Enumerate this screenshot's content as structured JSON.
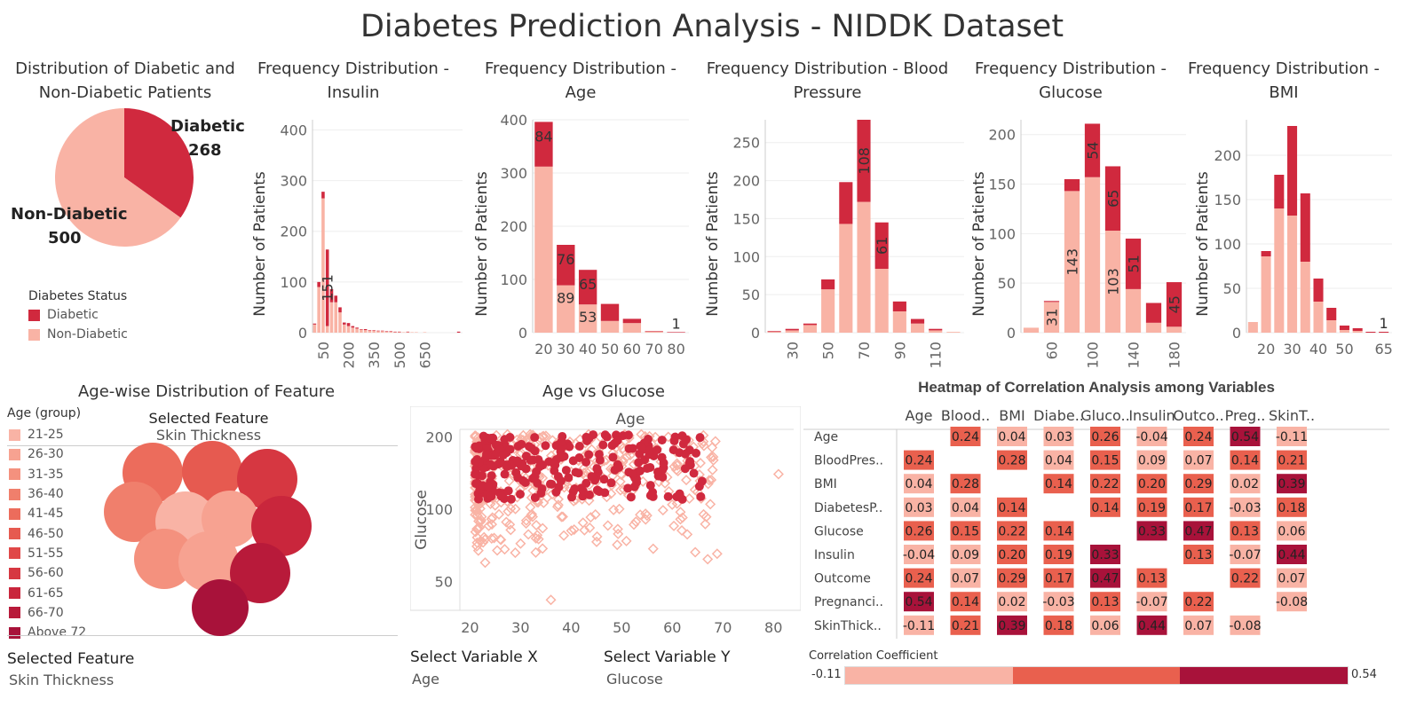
{
  "page_title": "Diabetes Prediction Analysis - NIDDK Dataset",
  "colors": {
    "diabetic": "#d0293e",
    "non_diabetic": "#f9b3a5",
    "dark": "#a8123a",
    "mid": "#e9604e"
  },
  "legend": {
    "title": "Diabetes Status",
    "items": [
      {
        "label": "Diabetic",
        "color": "#d0293e"
      },
      {
        "label": "Non-Diabetic",
        "color": "#f9b3a5"
      }
    ]
  },
  "pie": {
    "title": "Distribution of Diabetic and Non-Diabetic Patients",
    "slices": [
      {
        "label": "Diabetic",
        "value": 268,
        "color": "#d0293e"
      },
      {
        "label": "Non-Diabetic",
        "value": 500,
        "color": "#f9b3a5"
      }
    ]
  },
  "chart_data": [
    {
      "type": "bar",
      "id": "insulin",
      "title": "Frequency Distribution - Insulin",
      "ylabel": "Number of Patients",
      "x": [
        0,
        25,
        50,
        75,
        100,
        125,
        150,
        175,
        200,
        225,
        250,
        275,
        300,
        325,
        350,
        375,
        400,
        425,
        450,
        475,
        500,
        525,
        550,
        575,
        600,
        625,
        650,
        675,
        700,
        725,
        750,
        775,
        800,
        825,
        850
      ],
      "diabetic": [
        2,
        10,
        13,
        151,
        26,
        13,
        10,
        4,
        6,
        3,
        2,
        1,
        2,
        1,
        1,
        1,
        1,
        1,
        1,
        1,
        1,
        0,
        1,
        0,
        0,
        0,
        0,
        0,
        0,
        0,
        0,
        0,
        0,
        0,
        2
      ],
      "non_diabetic": [
        16,
        90,
        265,
        13,
        60,
        60,
        40,
        16,
        13,
        10,
        8,
        6,
        5,
        4,
        4,
        3,
        3,
        2,
        2,
        1,
        1,
        1,
        1,
        1,
        1,
        0,
        1,
        0,
        0,
        0,
        0,
        0,
        0,
        0,
        0
      ],
      "xticks": [
        50,
        200,
        350,
        500,
        650
      ],
      "yticks": [
        0,
        100,
        200,
        300,
        400
      ],
      "ylim": [
        0,
        420
      ],
      "labels": [
        {
          "index": 3,
          "text": "151"
        }
      ]
    },
    {
      "type": "bar",
      "id": "age",
      "title": "Frequency Distribution - Age",
      "ylabel": "Number of Patients",
      "x": [
        20,
        30,
        40,
        50,
        60,
        70,
        80
      ],
      "diabetic": [
        84,
        76,
        65,
        32,
        8,
        1,
        1
      ],
      "non_diabetic": [
        312,
        89,
        53,
        22,
        18,
        2,
        0
      ],
      "xticks": [
        20,
        30,
        40,
        50,
        60,
        70,
        80
      ],
      "yticks": [
        0,
        100,
        200,
        300,
        400
      ],
      "ylim": [
        0,
        400
      ],
      "labels": [
        {
          "index": 0,
          "text": "84"
        },
        {
          "index": 1,
          "text": "76"
        },
        {
          "index": 1,
          "text": "89",
          "part": "non"
        },
        {
          "index": 2,
          "text": "65"
        },
        {
          "index": 2,
          "text": "53",
          "part": "non"
        },
        {
          "index": 6,
          "text": "1",
          "part": "above"
        }
      ]
    },
    {
      "type": "bar",
      "id": "bp",
      "title": "Frequency Distribution - Blood Pressure",
      "ylabel": "Number of Patients",
      "x": [
        20,
        30,
        40,
        50,
        60,
        70,
        80,
        90,
        100,
        110,
        120
      ],
      "diabetic": [
        1,
        2,
        2,
        13,
        55,
        108,
        61,
        13,
        6,
        2,
        0
      ],
      "non_diabetic": [
        1,
        3,
        10,
        57,
        143,
        172,
        84,
        28,
        12,
        3,
        1
      ],
      "xticks": [
        30,
        50,
        70,
        90,
        110
      ],
      "yticks": [
        0,
        50,
        100,
        150,
        200,
        250
      ],
      "ylim": [
        0,
        280
      ],
      "labels": [
        {
          "index": 5,
          "text": "108"
        },
        {
          "index": 6,
          "text": "61"
        }
      ]
    },
    {
      "type": "bar",
      "id": "glucose",
      "title": "Frequency Distribution - Glucose",
      "ylabel": "Number of Patients",
      "x": [
        50,
        60,
        70,
        80,
        90,
        100,
        110,
        120,
        130,
        140,
        150
      ],
      "diabetic": [
        0,
        1,
        2,
        12,
        54,
        65,
        51,
        16,
        45,
        3,
        0
      ],
      "non_diabetic": [
        5,
        31,
        2,
        143,
        157,
        103,
        60,
        32,
        5,
        0,
        0
      ],
      "bar_x": [
        50,
        60,
        80,
        100,
        120,
        140,
        160,
        180
      ],
      "diabetic_bins": [
        0,
        1,
        12,
        54,
        65,
        51,
        20,
        45
      ],
      "non_diabetic_bins": [
        5,
        31,
        143,
        157,
        103,
        44,
        10,
        6
      ],
      "xticks": [
        60,
        100,
        140,
        180
      ],
      "yticks": [
        0,
        50,
        100,
        150,
        200
      ],
      "ylim": [
        0,
        215
      ],
      "labels": [
        {
          "index": 1,
          "text": "31",
          "part": "non"
        },
        {
          "index": 2,
          "text": "143",
          "part": "non"
        },
        {
          "index": 3,
          "text": "54"
        },
        {
          "index": 4,
          "text": "65"
        },
        {
          "index": 4,
          "text": "103",
          "part": "non"
        },
        {
          "index": 5,
          "text": "51"
        },
        {
          "index": 7,
          "text": "45"
        }
      ]
    },
    {
      "type": "bar",
      "id": "bmi",
      "title": "Frequency Distribution - BMI",
      "ylabel": "Number of Patients",
      "x": [
        15,
        20,
        25,
        30,
        35,
        40,
        45,
        50,
        55,
        60,
        65
      ],
      "diabetic": [
        0,
        6,
        38,
        101,
        77,
        26,
        14,
        5,
        3,
        1,
        1
      ],
      "non_diabetic": [
        12,
        86,
        140,
        132,
        80,
        35,
        14,
        3,
        2,
        0,
        0
      ],
      "xticks": [
        20,
        30,
        40,
        50,
        65
      ],
      "yticks": [
        0,
        50,
        100,
        150,
        200
      ],
      "ylim": [
        0,
        240
      ],
      "labels": [
        {
          "index": 10,
          "text": "1",
          "part": "above"
        }
      ]
    },
    {
      "type": "scatter",
      "id": "age_glucose",
      "title": "Age vs Glucose",
      "xlabel": "Age",
      "ylabel": "Glucose",
      "xticks": [
        20,
        30,
        40,
        50,
        60,
        70,
        80
      ],
      "yticks": [
        50,
        100,
        200
      ],
      "xlim": [
        18,
        84
      ],
      "ylim": [
        38,
        215
      ],
      "log_y": true
    },
    {
      "type": "heatmap",
      "id": "corr",
      "title": "Heatmap of Correlation Analysis among Variables",
      "columns": [
        "Age",
        "Blood..",
        "BMI",
        "Diabe..",
        "Gluco..",
        "Insulin",
        "Outco..",
        "Preg..",
        "SkinT.."
      ],
      "rows": [
        "Age",
        "BloodPres..",
        "BMI",
        "DiabetesP..",
        "Glucose",
        "Insulin",
        "Outcome",
        "Pregnanci..",
        "SkinThick.."
      ],
      "values": [
        [
          null,
          0.24,
          0.04,
          0.03,
          0.26,
          -0.04,
          0.24,
          0.54,
          -0.11
        ],
        [
          0.24,
          null,
          0.28,
          0.04,
          0.15,
          0.09,
          0.07,
          0.14,
          0.21
        ],
        [
          0.04,
          0.28,
          null,
          0.14,
          0.22,
          0.2,
          0.29,
          0.02,
          0.39
        ],
        [
          0.03,
          0.04,
          0.14,
          null,
          0.14,
          0.19,
          0.17,
          -0.03,
          0.18
        ],
        [
          0.26,
          0.15,
          0.22,
          0.14,
          null,
          0.33,
          0.47,
          0.13,
          0.06
        ],
        [
          -0.04,
          0.09,
          0.2,
          0.19,
          0.33,
          null,
          0.13,
          -0.07,
          0.44
        ],
        [
          0.24,
          0.07,
          0.29,
          0.17,
          0.47,
          0.13,
          null,
          0.22,
          0.07
        ],
        [
          0.54,
          0.14,
          0.02,
          -0.03,
          0.13,
          -0.07,
          0.22,
          null,
          -0.08
        ],
        [
          -0.11,
          0.21,
          0.39,
          0.18,
          0.06,
          0.44,
          0.07,
          -0.08,
          null
        ]
      ],
      "legend_title": "Correlation Coefficient",
      "min_label": "-0.11",
      "max_label": "0.54"
    }
  ],
  "age_groups": {
    "title": "Age-wise Distribution of Feature",
    "legend_title": "Age (group)",
    "items": [
      {
        "label": "21-25",
        "color": "#f9b3a5"
      },
      {
        "label": "26-30",
        "color": "#f7a291"
      },
      {
        "label": "31-35",
        "color": "#f4917e"
      },
      {
        "label": "36-40",
        "color": "#f07f6c"
      },
      {
        "label": "41-45",
        "color": "#ec6c5c"
      },
      {
        "label": "46-50",
        "color": "#e65a50"
      },
      {
        "label": "51-55",
        "color": "#e04848"
      },
      {
        "label": "56-60",
        "color": "#d63741"
      },
      {
        "label": "61-65",
        "color": "#c9263c"
      },
      {
        "label": "66-70",
        "color": "#b81a3a"
      },
      {
        "label": "Above 72",
        "color": "#a8123a"
      }
    ],
    "selected_feature_label": "Selected Feature",
    "selected_feature_value": "Skin Thickness"
  },
  "controls": {
    "selected_feature_label": "Selected Feature",
    "selected_feature_value": "Skin Thickness",
    "x_label": "Select Variable X",
    "x_value": "Age",
    "y_label": "Select Variable Y",
    "y_value": "Glucose"
  }
}
